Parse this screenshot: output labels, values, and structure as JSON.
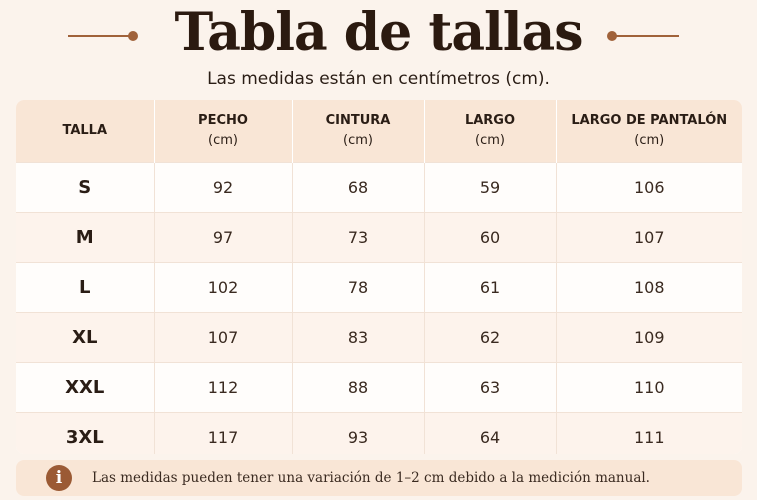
{
  "header": {
    "title": "Tabla de tallas",
    "subtitle": "Las medidas están en centímetros (cm)."
  },
  "table": {
    "columns": [
      {
        "label": "TALLA",
        "unit": ""
      },
      {
        "label": "PECHO",
        "unit": "(cm)"
      },
      {
        "label": "CINTURA",
        "unit": "(cm)"
      },
      {
        "label": "LARGO",
        "unit": "(cm)"
      },
      {
        "label": "LARGO DE PANTALÓN",
        "unit": "(cm)"
      }
    ],
    "rows": [
      [
        "S",
        "92",
        "68",
        "59",
        "106"
      ],
      [
        "M",
        "97",
        "73",
        "60",
        "107"
      ],
      [
        "L",
        "102",
        "78",
        "61",
        "108"
      ],
      [
        "XL",
        "107",
        "83",
        "62",
        "109"
      ],
      [
        "XXL",
        "112",
        "88",
        "63",
        "110"
      ],
      [
        "3XL",
        "117",
        "93",
        "64",
        "111"
      ]
    ]
  },
  "note": {
    "icon": "info-icon",
    "icon_glyph": "i",
    "text": "Las medidas pueden tener una variación de 1–2 cm debido a la medición manual."
  },
  "colors": {
    "background": "#fbf3ec",
    "header_fill": "#f9e6d6",
    "accent": "#a0623a",
    "title": "#2b1a10"
  }
}
